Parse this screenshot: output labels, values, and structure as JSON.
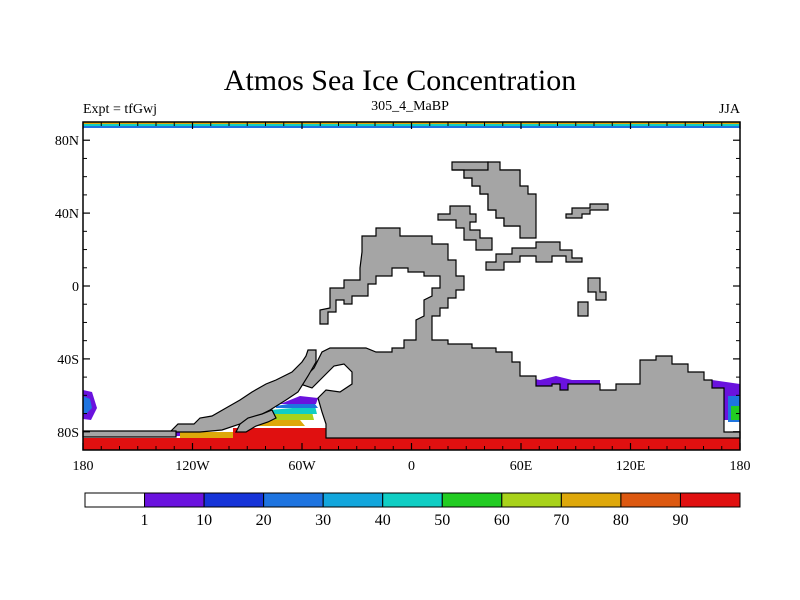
{
  "title": "Atmos Sea Ice Concentration",
  "subtitle_left": "Expt = tfGwj",
  "subtitle_center": "305_4_MaBP",
  "subtitle_right": "JJA",
  "y_ticks": [
    {
      "label": "80N",
      "lat": 80
    },
    {
      "label": "40N",
      "lat": 40
    },
    {
      "label": "0",
      "lat": 0
    },
    {
      "label": "40S",
      "lat": -40
    },
    {
      "label": "80S",
      "lat": -80
    }
  ],
  "x_ticks": [
    {
      "label": "180",
      "lon": -180
    },
    {
      "label": "120W",
      "lon": -120
    },
    {
      "label": "60W",
      "lon": -60
    },
    {
      "label": "0",
      "lon": 0
    },
    {
      "label": "60E",
      "lon": 60
    },
    {
      "label": "120E",
      "lon": 120
    },
    {
      "label": "180",
      "lon": 180
    }
  ],
  "colorbar": {
    "colors": [
      "#ffffff",
      "#6a12de",
      "#1634d8",
      "#1e74e0",
      "#12a6dc",
      "#10cec4",
      "#22cc22",
      "#a8d21a",
      "#dea80a",
      "#dc5810",
      "#e01010"
    ],
    "labels": [
      "1",
      "10",
      "20",
      "30",
      "40",
      "50",
      "60",
      "70",
      "80",
      "90"
    ]
  },
  "colors": {
    "land": "#a5a5a5",
    "land_outline": "#000000",
    "ocean": "#ffffff"
  }
}
